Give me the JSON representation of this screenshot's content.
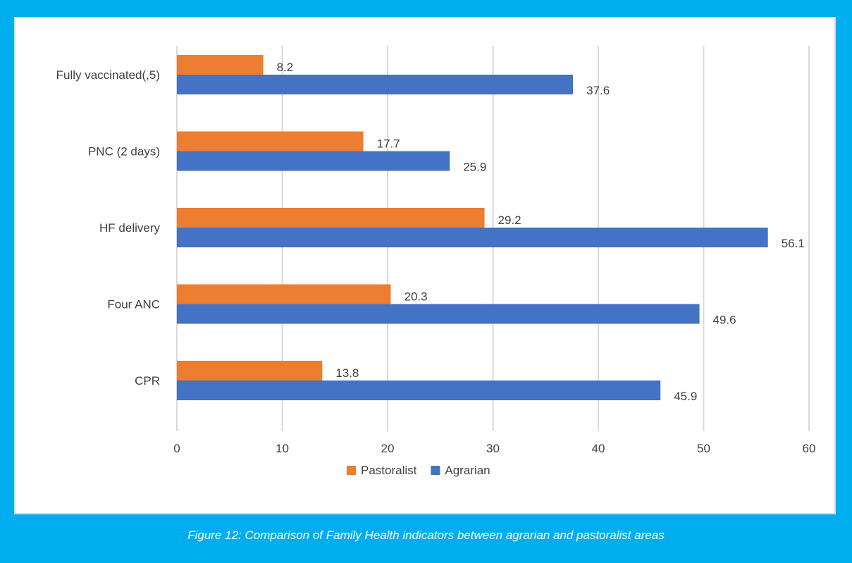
{
  "caption": "Figure 12: Comparison of Family Health indicators between agrarian and pastoralist areas",
  "chart_data": {
    "type": "bar",
    "orientation": "horizontal",
    "categories": [
      "Fully vaccinated(,5)",
      "PNC (2 days)",
      "HF delivery",
      "Four ANC",
      "CPR"
    ],
    "series": [
      {
        "name": "Pastoralist",
        "color": "#ED7D31",
        "values": [
          8.2,
          17.7,
          29.2,
          20.3,
          13.8
        ]
      },
      {
        "name": "Agrarian",
        "color": "#4472C4",
        "values": [
          37.6,
          25.9,
          56.1,
          49.6,
          45.9
        ]
      }
    ],
    "xlim": [
      0,
      60
    ],
    "xticks": [
      0,
      10,
      20,
      30,
      40,
      50,
      60
    ],
    "grid": true,
    "legend": "bottom",
    "data_labels": true
  }
}
